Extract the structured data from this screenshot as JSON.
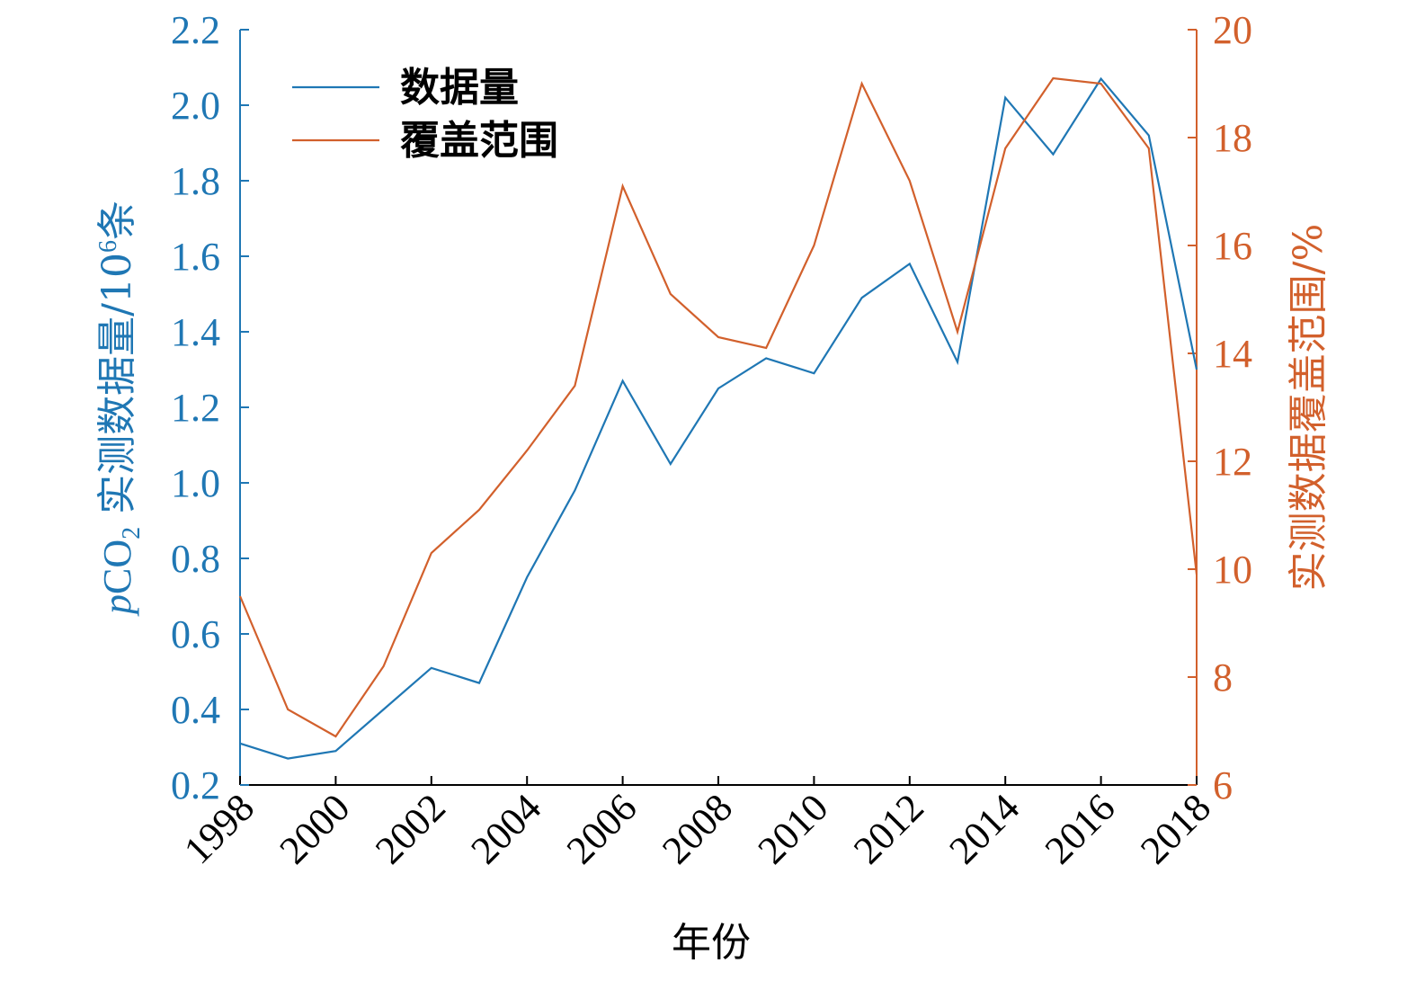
{
  "chart_data": {
    "type": "line",
    "title": "",
    "xlabel": "年份",
    "ylabel_left": {
      "prefix_italic": "p",
      "main": "CO",
      "subscript": "2",
      "suffix": " 实测数据量/10",
      "superscript": "6",
      "unit": "条"
    },
    "ylabel_right": "实测数据覆盖范围/%",
    "x": [
      1998,
      1999,
      2000,
      2001,
      2002,
      2003,
      2004,
      2005,
      2006,
      2007,
      2008,
      2009,
      2010,
      2011,
      2012,
      2013,
      2014,
      2015,
      2016,
      2017,
      2018
    ],
    "xlim": [
      1998,
      2018
    ],
    "xticks": [
      "1998",
      "2000",
      "2002",
      "2004",
      "2006",
      "2008",
      "2010",
      "2012",
      "2014",
      "2016",
      "2018"
    ],
    "ylim_left": [
      0.2,
      2.2
    ],
    "yticks_left": [
      "0.2",
      "0.4",
      "0.6",
      "0.8",
      "1.0",
      "1.2",
      "1.4",
      "1.6",
      "1.8",
      "2.0",
      "2.2"
    ],
    "ylim_right": [
      6,
      20
    ],
    "yticks_right": [
      "6",
      "8",
      "10",
      "12",
      "14",
      "16",
      "18",
      "20"
    ],
    "series": [
      {
        "name": "数据量",
        "axis": "left",
        "color": "#1f77b4",
        "values": [
          0.31,
          0.27,
          0.29,
          0.4,
          0.51,
          0.47,
          0.75,
          0.98,
          1.27,
          1.05,
          1.25,
          1.33,
          1.29,
          1.49,
          1.58,
          1.32,
          2.02,
          1.87,
          2.07,
          1.92,
          1.3
        ]
      },
      {
        "name": "覆盖范围",
        "axis": "right",
        "color": "#d2602c",
        "values": [
          9.5,
          7.4,
          6.9,
          8.2,
          10.3,
          11.1,
          12.2,
          13.4,
          17.1,
          15.1,
          14.3,
          14.1,
          16.0,
          19.0,
          17.2,
          14.4,
          17.8,
          19.1,
          19.0,
          17.8,
          9.9
        ]
      }
    ],
    "legend_position": "top-left",
    "grid": false
  }
}
